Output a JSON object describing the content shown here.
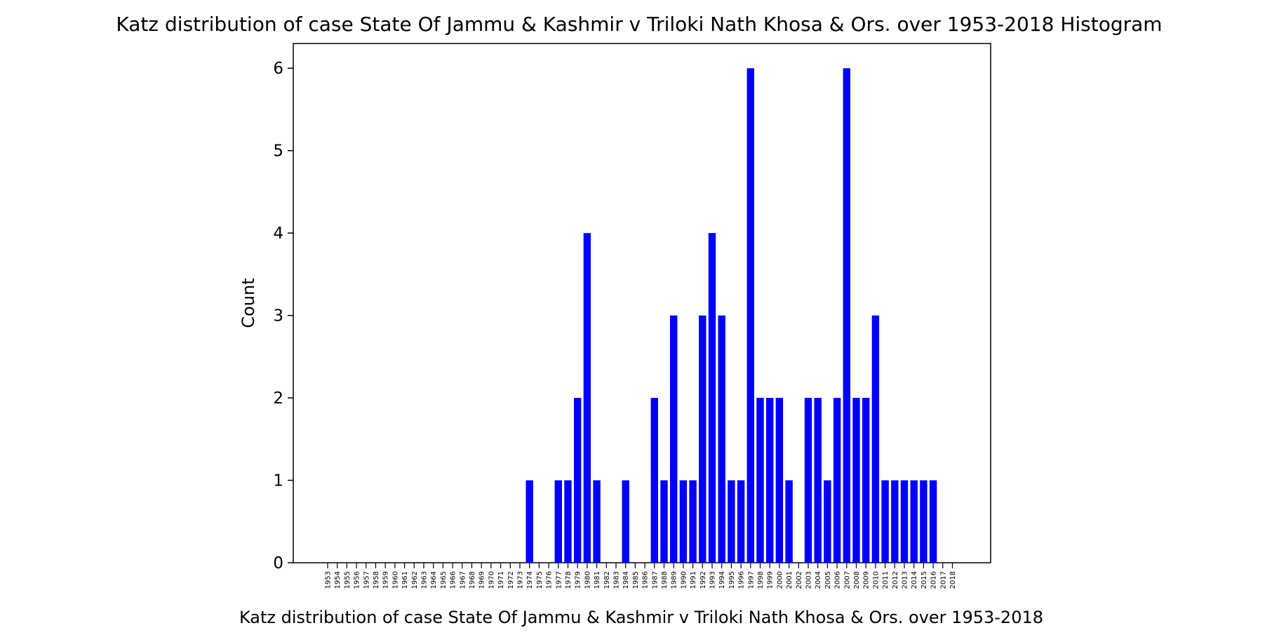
{
  "chart_data": {
    "type": "bar",
    "title": "Katz distribution of case State Of Jammu & Kashmir v Triloki Nath Khosa & Ors. over 1953-2018 Histogram",
    "xlabel": "Katz distribution of case State Of Jammu & Kashmir v Triloki Nath Khosa & Ors. over 1953-2018",
    "ylabel": "Count",
    "ylim": [
      0,
      6.3
    ],
    "yticks": [
      0,
      1,
      2,
      3,
      4,
      5,
      6
    ],
    "bar_color": "#0000ff",
    "categories": [
      "1953",
      "1954",
      "1955",
      "1956",
      "1957",
      "1958",
      "1959",
      "1960",
      "1961",
      "1962",
      "1963",
      "1964",
      "1965",
      "1966",
      "1967",
      "1968",
      "1969",
      "1970",
      "1971",
      "1972",
      "1973",
      "1974",
      "1975",
      "1976",
      "1977",
      "1978",
      "1979",
      "1980",
      "1981",
      "1982",
      "1983",
      "1984",
      "1985",
      "1986",
      "1987",
      "1988",
      "1989",
      "1990",
      "1991",
      "1992",
      "1993",
      "1994",
      "1995",
      "1996",
      "1997",
      "1998",
      "1999",
      "2000",
      "2001",
      "2002",
      "2003",
      "2004",
      "2005",
      "2006",
      "2007",
      "2008",
      "2009",
      "2010",
      "2011",
      "2012",
      "2013",
      "2014",
      "2015",
      "2016",
      "2017",
      "2018"
    ],
    "values": [
      0,
      0,
      0,
      0,
      0,
      0,
      0,
      0,
      0,
      0,
      0,
      0,
      0,
      0,
      0,
      0,
      0,
      0,
      0,
      0,
      0,
      1,
      0,
      0,
      1,
      1,
      2,
      4,
      1,
      0,
      0,
      1,
      0,
      0,
      2,
      1,
      3,
      1,
      1,
      3,
      4,
      3,
      1,
      1,
      6,
      2,
      2,
      2,
      1,
      0,
      2,
      2,
      1,
      2,
      6,
      2,
      2,
      3,
      1,
      1,
      1,
      1,
      1,
      1,
      0,
      0
    ]
  }
}
